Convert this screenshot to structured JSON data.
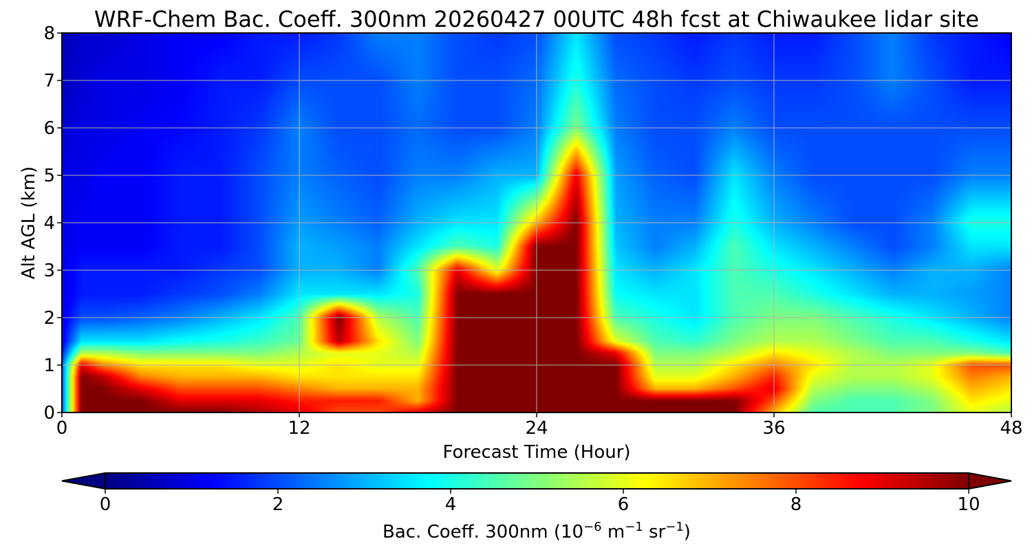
{
  "chart_data": {
    "type": "heatmap",
    "title": "WRF-Chem Bac. Coeff. 300nm  20260427 00UTC 48h fcst at Chiwaukee lidar site",
    "xlabel": "Forecast Time (Hour)",
    "ylabel": "Alt AGL (km)",
    "xlim": [
      0,
      48
    ],
    "ylim": [
      0,
      8
    ],
    "xticks": [
      "0",
      "12",
      "24",
      "36",
      "48"
    ],
    "yticks": [
      "0",
      "1",
      "2",
      "3",
      "4",
      "5",
      "6",
      "7",
      "8"
    ],
    "grid": true,
    "colormap": "jet",
    "colorbar": {
      "orientation": "horizontal",
      "placement": "bottom",
      "range": [
        0,
        10
      ],
      "extend": "both",
      "ticks": [
        "0",
        "2",
        "4",
        "6",
        "8",
        "10"
      ],
      "label_main": "Bac. Coeff. 300nm  (10",
      "label_exp1": "−6",
      "label_mid": " m",
      "label_exp2": "−1",
      "label_mid2": " sr",
      "label_exp3": "−1",
      "label_end": ")"
    },
    "x_hours": [
      0,
      1,
      2,
      4,
      6,
      8,
      10,
      12,
      14,
      16,
      18,
      20,
      22,
      24,
      26,
      28,
      30,
      32,
      34,
      36,
      38,
      40,
      42,
      44,
      46,
      48
    ],
    "z_km": [
      0,
      0.25,
      0.5,
      0.75,
      1,
      1.25,
      1.5,
      2,
      2.5,
      3,
      3.5,
      4,
      5,
      6,
      7,
      8
    ],
    "values": [
      [
        2.0,
        10,
        10,
        10,
        10,
        10,
        9.5,
        9.0,
        8.0,
        8.0,
        9.0,
        10,
        10,
        10,
        10,
        10,
        10,
        10,
        10,
        7.0,
        4.5,
        4.5,
        4.5,
        5.0,
        6.0,
        5.5
      ],
      [
        2.0,
        10,
        10,
        10,
        9.0,
        9.0,
        9.0,
        8.5,
        8.5,
        8.5,
        7.0,
        10,
        10,
        10,
        10,
        10,
        10,
        10,
        10,
        8.0,
        5.0,
        4.5,
        4.5,
        5.0,
        6.5,
        6.0
      ],
      [
        2.0,
        10,
        10,
        9.0,
        8.0,
        8.0,
        8.0,
        7.5,
        7.0,
        7.0,
        7.0,
        10,
        10,
        10,
        10,
        10,
        7.0,
        7.0,
        8.0,
        9.0,
        5.5,
        5.0,
        5.0,
        5.5,
        7.0,
        6.5
      ],
      [
        2.0,
        10,
        9.5,
        7.5,
        7.0,
        7.0,
        7.0,
        6.5,
        6.5,
        6.5,
        6.5,
        10,
        10,
        10,
        10,
        10,
        6.0,
        6.0,
        7.0,
        8.5,
        6.0,
        5.5,
        5.5,
        6.0,
        7.5,
        7.0
      ],
      [
        2.0,
        9.0,
        7.5,
        6.5,
        6.5,
        6.5,
        6.0,
        6.0,
        6.5,
        6.0,
        6.0,
        10,
        10,
        10,
        10,
        10,
        5.5,
        5.5,
        6.5,
        7.5,
        6.5,
        5.5,
        5.5,
        6.0,
        8.0,
        8.0
      ],
      [
        1.5,
        5.5,
        5.5,
        5.0,
        5.0,
        5.0,
        5.0,
        5.5,
        6.0,
        6.0,
        5.5,
        10,
        10,
        10,
        10,
        9.0,
        5.0,
        5.0,
        5.5,
        6.5,
        6.0,
        5.5,
        5.0,
        5.0,
        5.0,
        4.5
      ],
      [
        1.0,
        3.5,
        3.5,
        3.5,
        3.8,
        4.0,
        4.3,
        4.8,
        9.5,
        6.5,
        5.0,
        10,
        10,
        10,
        10,
        6.0,
        4.5,
        4.2,
        5.0,
        5.5,
        5.5,
        5.0,
        4.5,
        4.5,
        4.0,
        3.5
      ],
      [
        1.0,
        2.0,
        2.0,
        2.2,
        2.5,
        3.0,
        3.5,
        4.5,
        10,
        5.5,
        4.5,
        10,
        10,
        10,
        10,
        4.5,
        4.0,
        3.5,
        4.5,
        5.0,
        5.0,
        4.5,
        4.0,
        3.5,
        3.0,
        2.5
      ],
      [
        1.0,
        1.5,
        1.5,
        1.5,
        1.8,
        2.0,
        2.5,
        3.5,
        3.5,
        3.5,
        4.0,
        10,
        10,
        10,
        10,
        3.8,
        3.5,
        3.5,
        4.5,
        4.5,
        4.0,
        3.5,
        3.0,
        3.0,
        2.8,
        2.5
      ],
      [
        1.0,
        1.5,
        1.5,
        1.5,
        1.5,
        1.8,
        2.0,
        3.0,
        3.0,
        2.5,
        4.5,
        9.0,
        6.0,
        10,
        10,
        3.5,
        3.0,
        3.5,
        4.5,
        4.0,
        3.5,
        3.0,
        2.5,
        3.0,
        3.0,
        2.5
      ],
      [
        1.0,
        1.2,
        1.2,
        1.2,
        1.5,
        1.5,
        2.0,
        3.0,
        2.8,
        2.5,
        3.5,
        4.5,
        4.0,
        10,
        10,
        3.2,
        2.5,
        3.0,
        4.5,
        3.5,
        3.0,
        2.5,
        2.0,
        2.5,
        3.5,
        3.5
      ],
      [
        1.0,
        1.2,
        1.2,
        1.2,
        1.5,
        1.5,
        2.0,
        2.8,
        2.5,
        2.2,
        3.0,
        3.5,
        3.5,
        7.0,
        10,
        3.0,
        2.5,
        2.5,
        4.0,
        3.0,
        2.5,
        2.0,
        2.0,
        2.5,
        4.0,
        4.0
      ],
      [
        1.0,
        1.0,
        1.2,
        1.2,
        1.5,
        1.5,
        2.0,
        2.5,
        2.2,
        2.0,
        2.5,
        2.5,
        3.0,
        3.0,
        9.0,
        2.8,
        2.2,
        2.0,
        3.5,
        2.5,
        2.0,
        2.0,
        2.0,
        2.0,
        2.5,
        2.5
      ],
      [
        0.8,
        1.0,
        1.0,
        1.2,
        1.3,
        1.5,
        1.8,
        2.5,
        2.0,
        2.0,
        2.3,
        2.0,
        2.0,
        2.5,
        5.0,
        2.5,
        2.0,
        2.0,
        2.5,
        2.0,
        2.0,
        2.0,
        2.0,
        2.0,
        2.0,
        2.0
      ],
      [
        0.6,
        0.8,
        1.0,
        1.0,
        1.2,
        1.5,
        1.5,
        2.0,
        2.0,
        2.0,
        2.5,
        2.0,
        2.0,
        2.3,
        4.0,
        2.3,
        2.0,
        1.8,
        2.0,
        1.8,
        1.8,
        2.0,
        2.5,
        2.0,
        1.5,
        1.5
      ],
      [
        0.5,
        0.8,
        0.8,
        1.0,
        1.2,
        1.2,
        1.5,
        1.5,
        1.8,
        2.5,
        2.5,
        2.0,
        1.8,
        2.0,
        3.5,
        2.0,
        1.8,
        1.5,
        1.8,
        1.5,
        1.5,
        2.0,
        2.5,
        1.8,
        1.5,
        1.2
      ]
    ]
  }
}
